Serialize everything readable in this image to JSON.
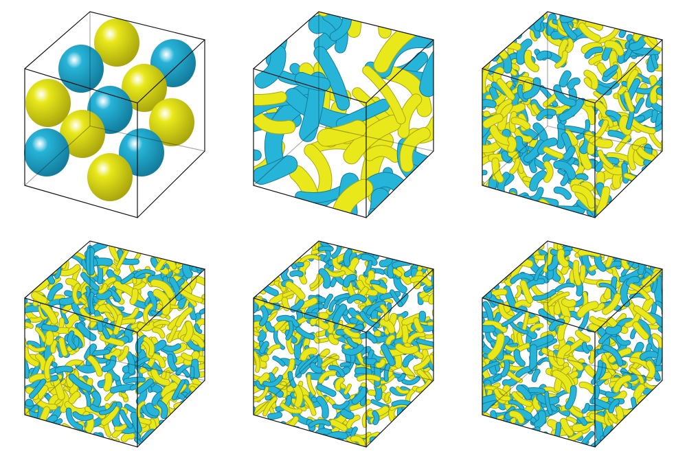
{
  "figure": {
    "rows": 2,
    "columns": 3,
    "panels": [
      {
        "id": "panel-1",
        "row": 1,
        "col": 1,
        "content": "isosurface-cube",
        "structure": "smooth-blobs"
      },
      {
        "id": "panel-2",
        "row": 1,
        "col": 2,
        "content": "isosurface-cube",
        "structure": "sheets"
      },
      {
        "id": "panel-3",
        "row": 1,
        "col": 3,
        "content": "isosurface-cube",
        "structure": "fine-vortices"
      },
      {
        "id": "panel-4",
        "row": 2,
        "col": 1,
        "content": "isosurface-cube",
        "structure": "turbulent"
      },
      {
        "id": "panel-5",
        "row": 2,
        "col": 2,
        "content": "isosurface-cube",
        "structure": "turbulent"
      },
      {
        "id": "panel-6",
        "row": 2,
        "col": 3,
        "content": "isosurface-cube",
        "structure": "turbulent"
      }
    ]
  },
  "colors": {
    "positive": "#e8e81a",
    "positive_dark": "#a9a60d",
    "negative": "#26b4d8",
    "negative_dark": "#137c9c",
    "edge": "#111111",
    "background": "#ffffff"
  }
}
